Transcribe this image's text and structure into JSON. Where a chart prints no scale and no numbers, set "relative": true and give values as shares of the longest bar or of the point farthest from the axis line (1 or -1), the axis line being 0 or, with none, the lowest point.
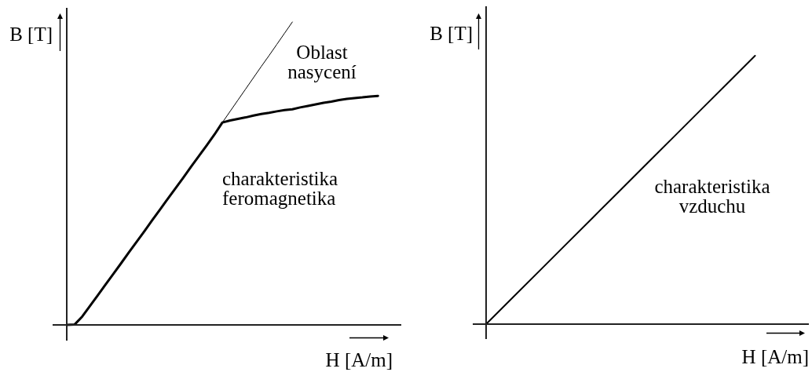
{
  "chart_data": [
    {
      "type": "line",
      "relative": true,
      "tick_labels": false,
      "marker": "none",
      "xlabel": "H [A/m]",
      "ylabel": "B [T]",
      "annotations": [
        "Oblast nasycení"
      ],
      "categories": [
        null,
        null,
        null,
        null,
        null,
        null,
        null,
        null,
        null,
        null,
        null,
        null,
        null,
        null,
        null,
        null,
        null,
        null,
        null,
        null,
        null,
        null,
        null,
        null,
        null,
        null,
        null,
        null,
        null,
        null,
        null,
        null,
        null,
        null,
        null,
        null,
        null,
        null,
        null,
        null,
        null,
        null,
        null,
        null
      ],
      "series": [
        {
          "name": "charakteristika feromagnetika",
          "color": "#000000",
          "values": [
            0,
            0.001,
            0.028,
            0.063,
            0.098,
            0.134,
            0.169,
            0.204,
            0.24,
            0.275,
            0.31,
            0.346,
            0.381,
            0.417,
            0.452,
            0.487,
            0.523,
            0.558,
            0.593,
            0.629,
            0.668,
            0.675,
            0.68,
            0.685,
            0.691,
            0.696,
            0.7,
            0.705,
            0.709,
            0.712,
            0.718,
            0.723,
            0.728,
            0.733,
            0.737,
            0.742,
            0.746,
            0.749,
            0.751,
            0.754,
            0.756,
            null,
            null,
            null
          ]
        },
        {
          "color": "#000000",
          "values": [
            null,
            null,
            null,
            null,
            null,
            null,
            null,
            null,
            null,
            null,
            null,
            null,
            null,
            null,
            null,
            null,
            null,
            null,
            null,
            null,
            0.668,
            0.705,
            0.742,
            0.779,
            0.816,
            0.853,
            0.889,
            0.926,
            0.963,
            1,
            null,
            null,
            null,
            null,
            null,
            null,
            null,
            null,
            null,
            null,
            null,
            null,
            null,
            null
          ]
        }
      ]
    },
    {
      "type": "line",
      "relative": true,
      "tick_labels": false,
      "marker": "none",
      "xlabel": "H [A/m]",
      "ylabel": "B [T]",
      "categories": [
        null,
        null,
        null,
        null,
        null,
        null,
        null,
        null,
        null,
        null,
        null,
        null,
        null
      ],
      "series": [
        {
          "name": "charakteristika vzduchu",
          "color": "#000000",
          "values": [
            0,
            0.1,
            0.2,
            0.3,
            0.4,
            0.5,
            0.6,
            0.7,
            0.8,
            0.9,
            1,
            null,
            null
          ]
        }
      ]
    }
  ]
}
